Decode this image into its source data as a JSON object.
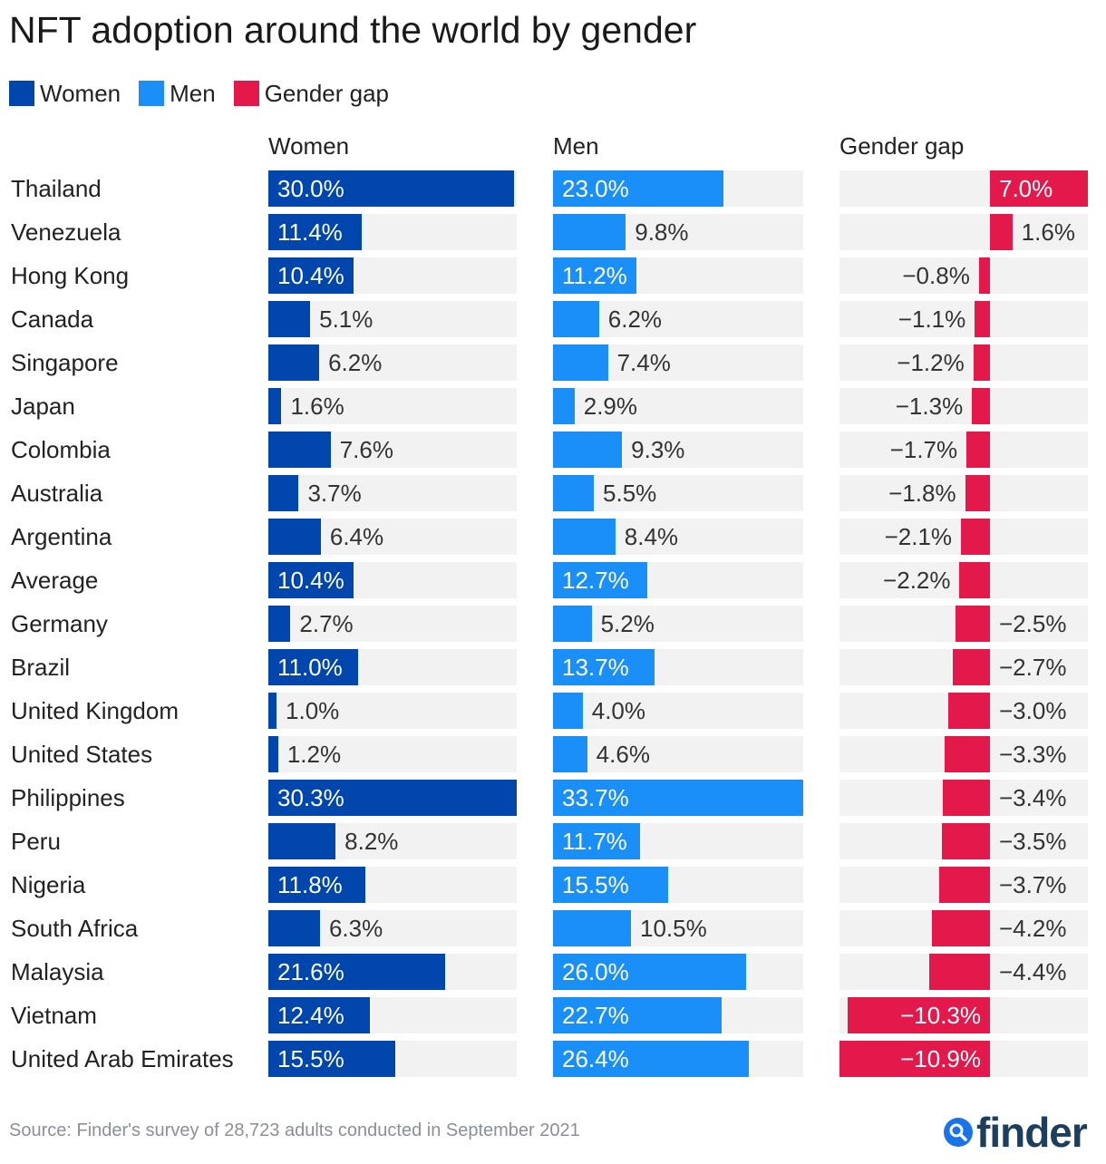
{
  "chart_data": {
    "type": "bar",
    "title": "NFT adoption around the world by gender",
    "legend": [
      "Women",
      "Men",
      "Gender gap"
    ],
    "column_headers": [
      "Women",
      "Men",
      "Gender gap"
    ],
    "colors": {
      "women": "#0046ad",
      "men": "#1a8ff7",
      "gap": "#e3194b",
      "track": "#f2f2f2"
    },
    "categories": [
      "Thailand",
      "Venezuela",
      "Hong Kong",
      "Canada",
      "Singapore",
      "Japan",
      "Colombia",
      "Australia",
      "Argentina",
      "Average",
      "Germany",
      "Brazil",
      "United Kingdom",
      "United States",
      "Philippines",
      "Peru",
      "Nigeria",
      "South Africa",
      "Malaysia",
      "Vietnam",
      "United Arab Emirates"
    ],
    "series": [
      {
        "name": "Women",
        "values": [
          30.0,
          11.4,
          10.4,
          5.1,
          6.2,
          1.6,
          7.6,
          3.7,
          6.4,
          10.4,
          2.7,
          11.0,
          1.0,
          1.2,
          30.3,
          8.2,
          11.8,
          6.3,
          21.6,
          12.4,
          15.5
        ]
      },
      {
        "name": "Men",
        "values": [
          23.0,
          9.8,
          11.2,
          6.2,
          7.4,
          2.9,
          9.3,
          5.5,
          8.4,
          12.7,
          5.2,
          13.7,
          4.0,
          4.6,
          33.7,
          11.7,
          15.5,
          10.5,
          26.0,
          22.7,
          26.4
        ]
      },
      {
        "name": "Gender gap",
        "values": [
          7.0,
          1.6,
          -0.8,
          -1.1,
          -1.2,
          -1.3,
          -1.7,
          -1.8,
          -2.1,
          -2.2,
          -2.5,
          -2.7,
          -3.0,
          -3.3,
          -3.4,
          -3.5,
          -3.7,
          -4.2,
          -4.4,
          -10.3,
          -10.9
        ]
      }
    ],
    "labels": {
      "women": [
        "30.0%",
        "11.4%",
        "10.4%",
        "5.1%",
        "6.2%",
        "1.6%",
        "7.6%",
        "3.7%",
        "6.4%",
        "10.4%",
        "2.7%",
        "11.0%",
        "1.0%",
        "1.2%",
        "30.3%",
        "8.2%",
        "11.8%",
        "6.3%",
        "21.6%",
        "12.4%",
        "15.5%"
      ],
      "men": [
        "23.0%",
        "9.8%",
        "11.2%",
        "6.2%",
        "7.4%",
        "2.9%",
        "9.3%",
        "5.5%",
        "8.4%",
        "12.7%",
        "5.2%",
        "13.7%",
        "4.0%",
        "4.6%",
        "33.7%",
        "11.7%",
        "15.5%",
        "10.5%",
        "26.0%",
        "22.7%",
        "26.4%"
      ],
      "gap": [
        "7.0%",
        "1.6%",
        "−0.8%",
        "−1.1%",
        "−1.2%",
        "−1.3%",
        "−1.7%",
        "−1.8%",
        "−2.1%",
        "−2.2%",
        "−2.5%",
        "−2.7%",
        "−3.0%",
        "−3.3%",
        "−3.4%",
        "−3.5%",
        "−3.7%",
        "−4.2%",
        "−4.4%",
        "−10.3%",
        "−10.9%"
      ]
    },
    "axis_ranges": {
      "women": [
        0,
        30.3
      ],
      "men": [
        0,
        33.7
      ],
      "gap": [
        -10.9,
        7.0
      ]
    }
  },
  "footer": {
    "source": "Source: Finder's survey of 28,723 adults conducted in September 2021",
    "logo_text": "finder"
  }
}
